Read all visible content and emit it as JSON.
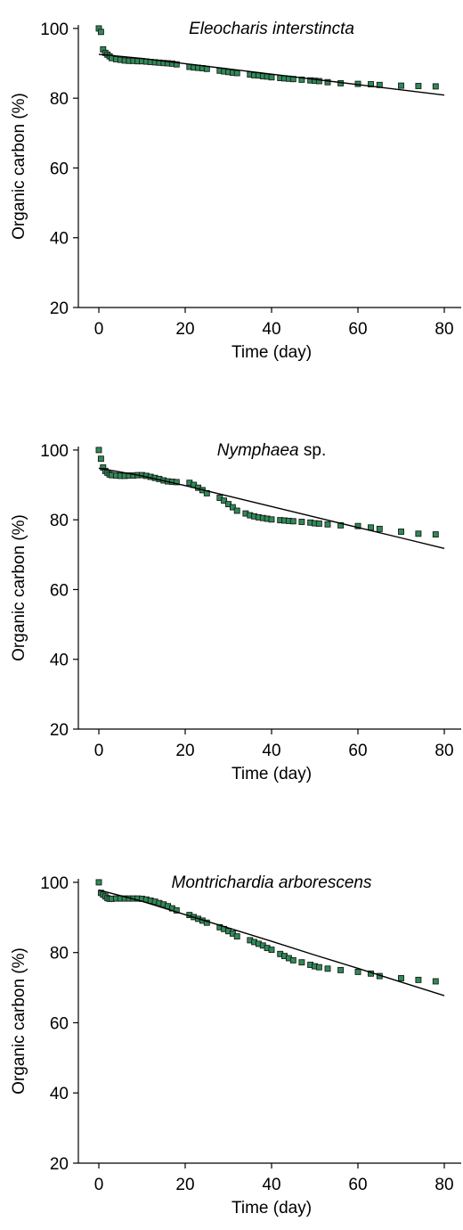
{
  "chart_data": [
    {
      "type": "scatter",
      "title": "Eleocharis interstincta",
      "title_italic_part": "Eleocharis interstincta",
      "title_plain_part": "",
      "xlabel": "Time (day)",
      "ylabel": "Organic carbon (%)",
      "xlim": [
        -5,
        85
      ],
      "ylim": [
        20,
        101
      ],
      "xticks": [
        0,
        20,
        40,
        60,
        80
      ],
      "yticks": [
        20,
        40,
        60,
        80,
        100
      ],
      "grid": false,
      "marker_color": "#2e8b57",
      "points": {
        "x": [
          0,
          0.5,
          1,
          1.5,
          2,
          2.5,
          3,
          4,
          5,
          6,
          7,
          8,
          9,
          10,
          11,
          12,
          13,
          14,
          15,
          16,
          17,
          18,
          21,
          22,
          23,
          24,
          25,
          28,
          29,
          30,
          31,
          32,
          35,
          36,
          37,
          38,
          39,
          40,
          42,
          43,
          44,
          45,
          47,
          49,
          50,
          51,
          53,
          56,
          60,
          63,
          65,
          70,
          74,
          78
        ],
        "y": [
          100,
          99,
          94,
          93,
          92.5,
          92,
          91.5,
          91.2,
          91,
          90.8,
          90.7,
          90.7,
          90.6,
          90.6,
          90.5,
          90.4,
          90.3,
          90.2,
          90.1,
          90,
          89.9,
          89.7,
          89,
          88.8,
          88.7,
          88.6,
          88.4,
          87.9,
          87.7,
          87.5,
          87.3,
          87.2,
          86.8,
          86.6,
          86.5,
          86.3,
          86.2,
          86,
          85.8,
          85.7,
          85.6,
          85.5,
          85.3,
          85.1,
          85,
          84.9,
          84.6,
          84.3,
          84.1,
          84,
          83.8,
          83.6,
          83.5,
          83.4
        ]
      },
      "fit_line": {
        "x": [
          0,
          10,
          20,
          30,
          40,
          50,
          60,
          70,
          80
        ],
        "y": [
          92.6,
          91.4,
          89.9,
          88.4,
          86.9,
          85.4,
          83.9,
          82.4,
          80.9
        ]
      }
    },
    {
      "type": "scatter",
      "title": "Nymphaea sp.",
      "title_italic_part": "Nymphaea",
      "title_plain_part": " sp.",
      "xlabel": "Time (day)",
      "ylabel": "Organic carbon (%)",
      "xlim": [
        -5,
        85
      ],
      "ylim": [
        20,
        101
      ],
      "xticks": [
        0,
        20,
        40,
        60,
        80
      ],
      "yticks": [
        20,
        40,
        60,
        80,
        100
      ],
      "grid": false,
      "marker_color": "#2e8b57",
      "points": {
        "x": [
          0,
          0.5,
          1,
          1.5,
          2,
          2.5,
          3,
          4,
          5,
          6,
          7,
          8,
          9,
          10,
          11,
          12,
          13,
          14,
          15,
          16,
          17,
          18,
          21,
          22,
          23,
          24,
          25,
          28,
          29,
          30,
          31,
          32,
          34,
          35,
          36,
          37,
          38,
          39,
          40,
          42,
          43,
          44,
          45,
          47,
          49,
          50,
          51,
          53,
          56,
          60,
          63,
          65,
          70,
          74,
          78
        ],
        "y": [
          100,
          97.5,
          95,
          94,
          93.5,
          93,
          92.8,
          92.7,
          92.6,
          92.6,
          92.7,
          92.7,
          92.8,
          92.8,
          92.6,
          92.3,
          92,
          91.7,
          91.3,
          91,
          90.9,
          90.8,
          90.6,
          90,
          89.2,
          88.5,
          87.6,
          86.3,
          85.5,
          84.5,
          83.6,
          82.6,
          81.8,
          81.3,
          81,
          80.7,
          80.5,
          80.3,
          80.1,
          79.9,
          79.8,
          79.7,
          79.6,
          79.4,
          79.2,
          79,
          78.9,
          78.7,
          78.4,
          78.2,
          77.8,
          77.4,
          76.6,
          76,
          75.8
        ]
      },
      "fit_line": {
        "x": [
          0,
          10,
          20,
          30,
          40,
          50,
          60,
          70,
          80
        ],
        "y": [
          94.8,
          92.6,
          89.8,
          86.8,
          83.8,
          80.8,
          77.8,
          74.8,
          71.8
        ]
      }
    },
    {
      "type": "scatter",
      "title": "Montrichardia arborescens",
      "title_italic_part": "Montrichardia arborescens",
      "title_plain_part": "",
      "xlabel": "Time (day)",
      "ylabel": "Organic carbon (%)",
      "xlim": [
        -5,
        85
      ],
      "ylim": [
        20,
        101
      ],
      "xticks": [
        0,
        20,
        40,
        60,
        80
      ],
      "yticks": [
        20,
        40,
        60,
        80,
        100
      ],
      "grid": false,
      "marker_color": "#2e8b57",
      "points": {
        "x": [
          0,
          0.5,
          1,
          1.5,
          2,
          2.5,
          3,
          4,
          5,
          6,
          7,
          8,
          9,
          10,
          11,
          12,
          13,
          14,
          15,
          16,
          17,
          18,
          21,
          22,
          23,
          24,
          25,
          28,
          29,
          30,
          31,
          32,
          35,
          36,
          37,
          38,
          39,
          40,
          42,
          43,
          44,
          45,
          47,
          49,
          50,
          51,
          53,
          56,
          60,
          63,
          65,
          70,
          74,
          78
        ],
        "y": [
          100,
          97,
          96.5,
          96,
          95.5,
          95.3,
          95.3,
          95.4,
          95.4,
          95.4,
          95.4,
          95.4,
          95.4,
          95.3,
          95.1,
          94.8,
          94.5,
          94.1,
          93.7,
          93.2,
          92.6,
          92,
          90.7,
          90.1,
          89.6,
          89.1,
          88.5,
          87.2,
          86.7,
          86.1,
          85.4,
          84.6,
          83.5,
          83,
          82.5,
          82,
          81.3,
          80.8,
          79.6,
          79,
          78.4,
          77.8,
          77.2,
          76.5,
          76.1,
          75.8,
          75.4,
          75,
          74.5,
          74,
          73.3,
          72.7,
          72.2,
          71.8
        ]
      },
      "fit_line": {
        "x": [
          0,
          10,
          20,
          30,
          40,
          50,
          60,
          70,
          80
        ],
        "y": [
          97.8,
          94.6,
          90.8,
          87.0,
          83.2,
          79.3,
          75.5,
          71.6,
          67.7
        ]
      }
    }
  ]
}
